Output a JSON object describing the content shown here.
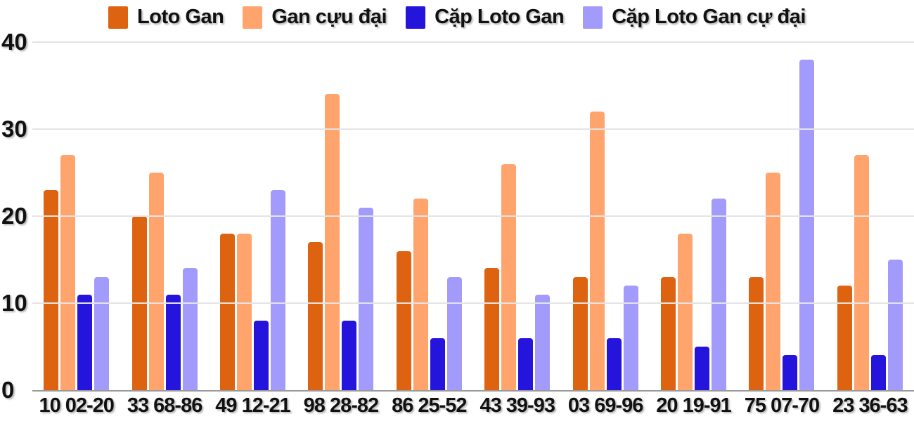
{
  "chart_data": {
    "type": "bar",
    "title": "",
    "xlabel": "",
    "ylabel": "",
    "categories": [
      "10 02-20",
      "33 68-86",
      "49 12-21",
      "98 28-82",
      "86 25-52",
      "43 39-93",
      "03 69-96",
      "20 19-91",
      "75 07-70",
      "23 36-63"
    ],
    "series": [
      {
        "name": "Loto Gan",
        "color": "#dd6311",
        "values": [
          23,
          20,
          18,
          17,
          16,
          14,
          13,
          13,
          13,
          12
        ]
      },
      {
        "name": "Gan cựu đại",
        "color": "#ffa46c",
        "values": [
          27,
          25,
          18,
          34,
          22,
          26,
          32,
          18,
          25,
          27
        ]
      },
      {
        "name": "Cặp Loto Gan",
        "color": "#2414dc",
        "values": [
          11,
          11,
          8,
          8,
          6,
          6,
          6,
          5,
          4,
          4
        ]
      },
      {
        "name": "Cặp Loto Gan cự đại",
        "color": "#a39bfb",
        "values": [
          13,
          14,
          23,
          21,
          13,
          11,
          12,
          22,
          38,
          15
        ]
      }
    ],
    "ylim": [
      0,
      40
    ],
    "yticks": [
      0,
      10,
      20,
      30,
      40
    ],
    "grid": true,
    "legend_position": "top"
  },
  "colors": {
    "grid_line": "#e4e4e4",
    "axis_line": "#9a9a9a",
    "text": "#111111",
    "background": "#ffffff"
  }
}
